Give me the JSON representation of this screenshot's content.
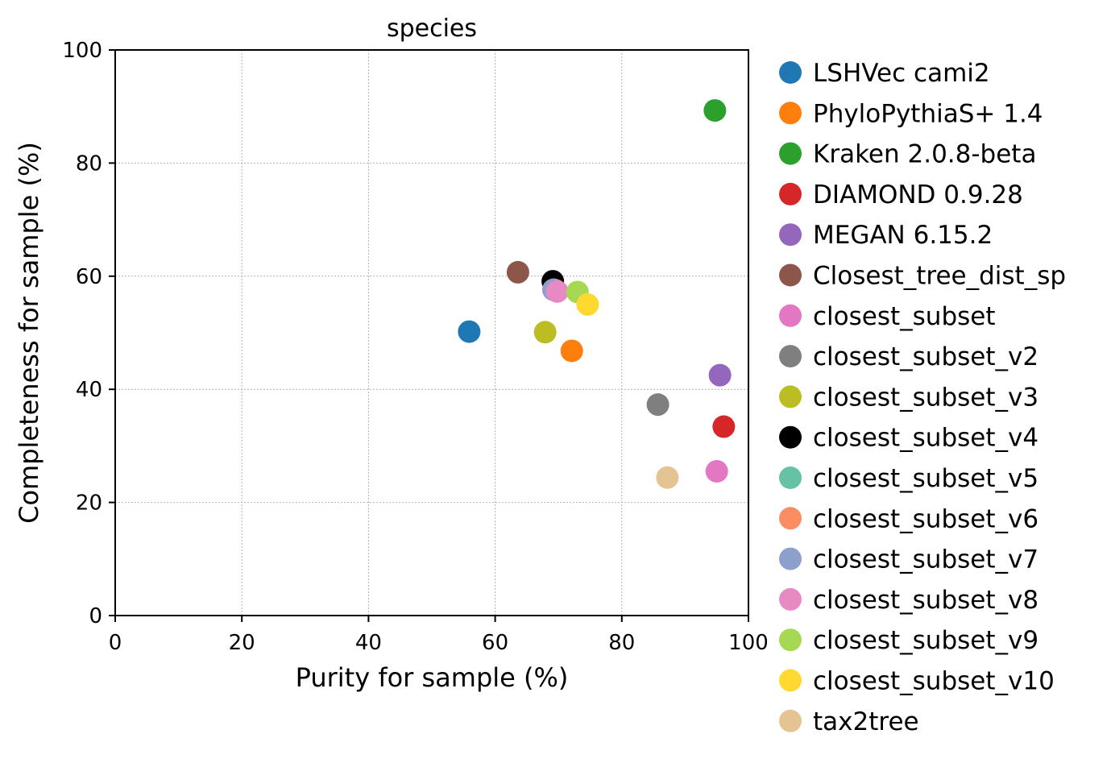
{
  "chart_data": {
    "type": "scatter",
    "title": "species",
    "xlabel": "Purity for sample (%)",
    "ylabel": "Completeness for sample (%)",
    "xlim": [
      0,
      100
    ],
    "ylim": [
      0,
      100
    ],
    "xticks": [
      "0",
      "20",
      "40",
      "60",
      "80",
      "100"
    ],
    "yticks": [
      "0",
      "20",
      "40",
      "60",
      "80",
      "100"
    ],
    "grid": true,
    "legend_position": "right, outside plot",
    "series": [
      {
        "name": "LSHVec cami2",
        "color": "#1f77b4",
        "x": 55.9,
        "y": 50.2
      },
      {
        "name": "PhyloPythiaS+ 1.4",
        "color": "#ff7f0e",
        "x": 72.1,
        "y": 46.8
      },
      {
        "name": "Kraken 2.0.8-beta",
        "color": "#2ca02c",
        "x": 94.7,
        "y": 89.3
      },
      {
        "name": "DIAMOND 0.9.28",
        "color": "#d62728",
        "x": 96.1,
        "y": 33.4
      },
      {
        "name": "MEGAN 6.15.2",
        "color": "#9467bd",
        "x": 95.5,
        "y": 42.5
      },
      {
        "name": "Closest_tree_dist_sp",
        "color": "#8c564b",
        "x": 63.6,
        "y": 60.7
      },
      {
        "name": "closest_subset",
        "color": "#e377c2",
        "x": 95.0,
        "y": 25.5
      },
      {
        "name": "closest_subset_v2",
        "color": "#7f7f7f",
        "x": 85.7,
        "y": 37.3
      },
      {
        "name": "closest_subset_v3",
        "color": "#bcbd22",
        "x": 67.9,
        "y": 50.1
      },
      {
        "name": "closest_subset_v4",
        "color": "#000000",
        "x": 69.1,
        "y": 59.1
      },
      {
        "name": "closest_subset_v5",
        "color": "#66c2a5",
        "x": 69.3,
        "y": 57.6
      },
      {
        "name": "closest_subset_v6",
        "color": "#fc8d62",
        "x": 69.5,
        "y": 57.5
      },
      {
        "name": "closest_subset_v7",
        "color": "#8da0cb",
        "x": 69.2,
        "y": 57.6
      },
      {
        "name": "closest_subset_v8",
        "color": "#e78ac3",
        "x": 69.8,
        "y": 57.3
      },
      {
        "name": "closest_subset_v9",
        "color": "#a6d854",
        "x": 73.0,
        "y": 57.2
      },
      {
        "name": "closest_subset_v10",
        "color": "#ffd92f",
        "x": 74.6,
        "y": 55.0
      },
      {
        "name": "tax2tree",
        "color": "#e5c494",
        "x": 87.2,
        "y": 24.4
      }
    ]
  }
}
